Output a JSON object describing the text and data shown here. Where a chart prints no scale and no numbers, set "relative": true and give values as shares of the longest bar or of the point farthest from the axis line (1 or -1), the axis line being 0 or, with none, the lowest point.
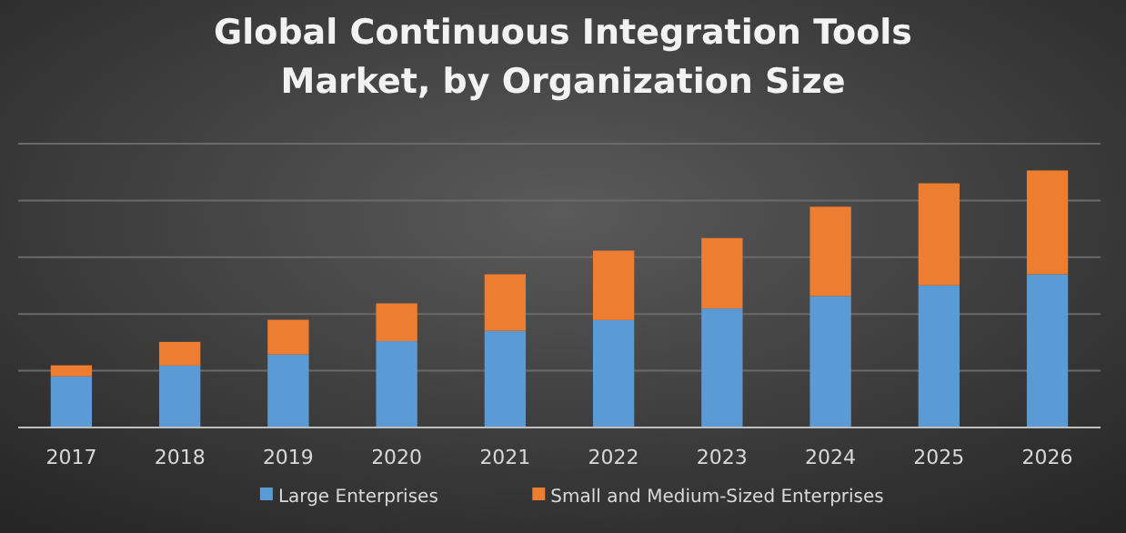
{
  "chart_data": {
    "type": "bar",
    "title": "Global Continuous Integration Tools Market, by Organization Size",
    "categories": [
      "2017",
      "2018",
      "2019",
      "2020",
      "2021",
      "2022",
      "2023",
      "2024",
      "2025",
      "2026"
    ],
    "stacked": true,
    "relative": true,
    "grid": true,
    "legend": "bottom",
    "series": [
      {
        "name": "Large Enterprises",
        "color": "#5b9bd5",
        "values": [
          0.199,
          0.241,
          0.284,
          0.336,
          0.376,
          0.418,
          0.463,
          0.511,
          0.553,
          0.596
        ]
      },
      {
        "name": "Small and Medium-Sized Enterprises",
        "color": "#ed7d31",
        "values": [
          0.043,
          0.092,
          0.135,
          0.147,
          0.22,
          0.27,
          0.274,
          0.348,
          0.397,
          0.404
        ]
      }
    ]
  }
}
